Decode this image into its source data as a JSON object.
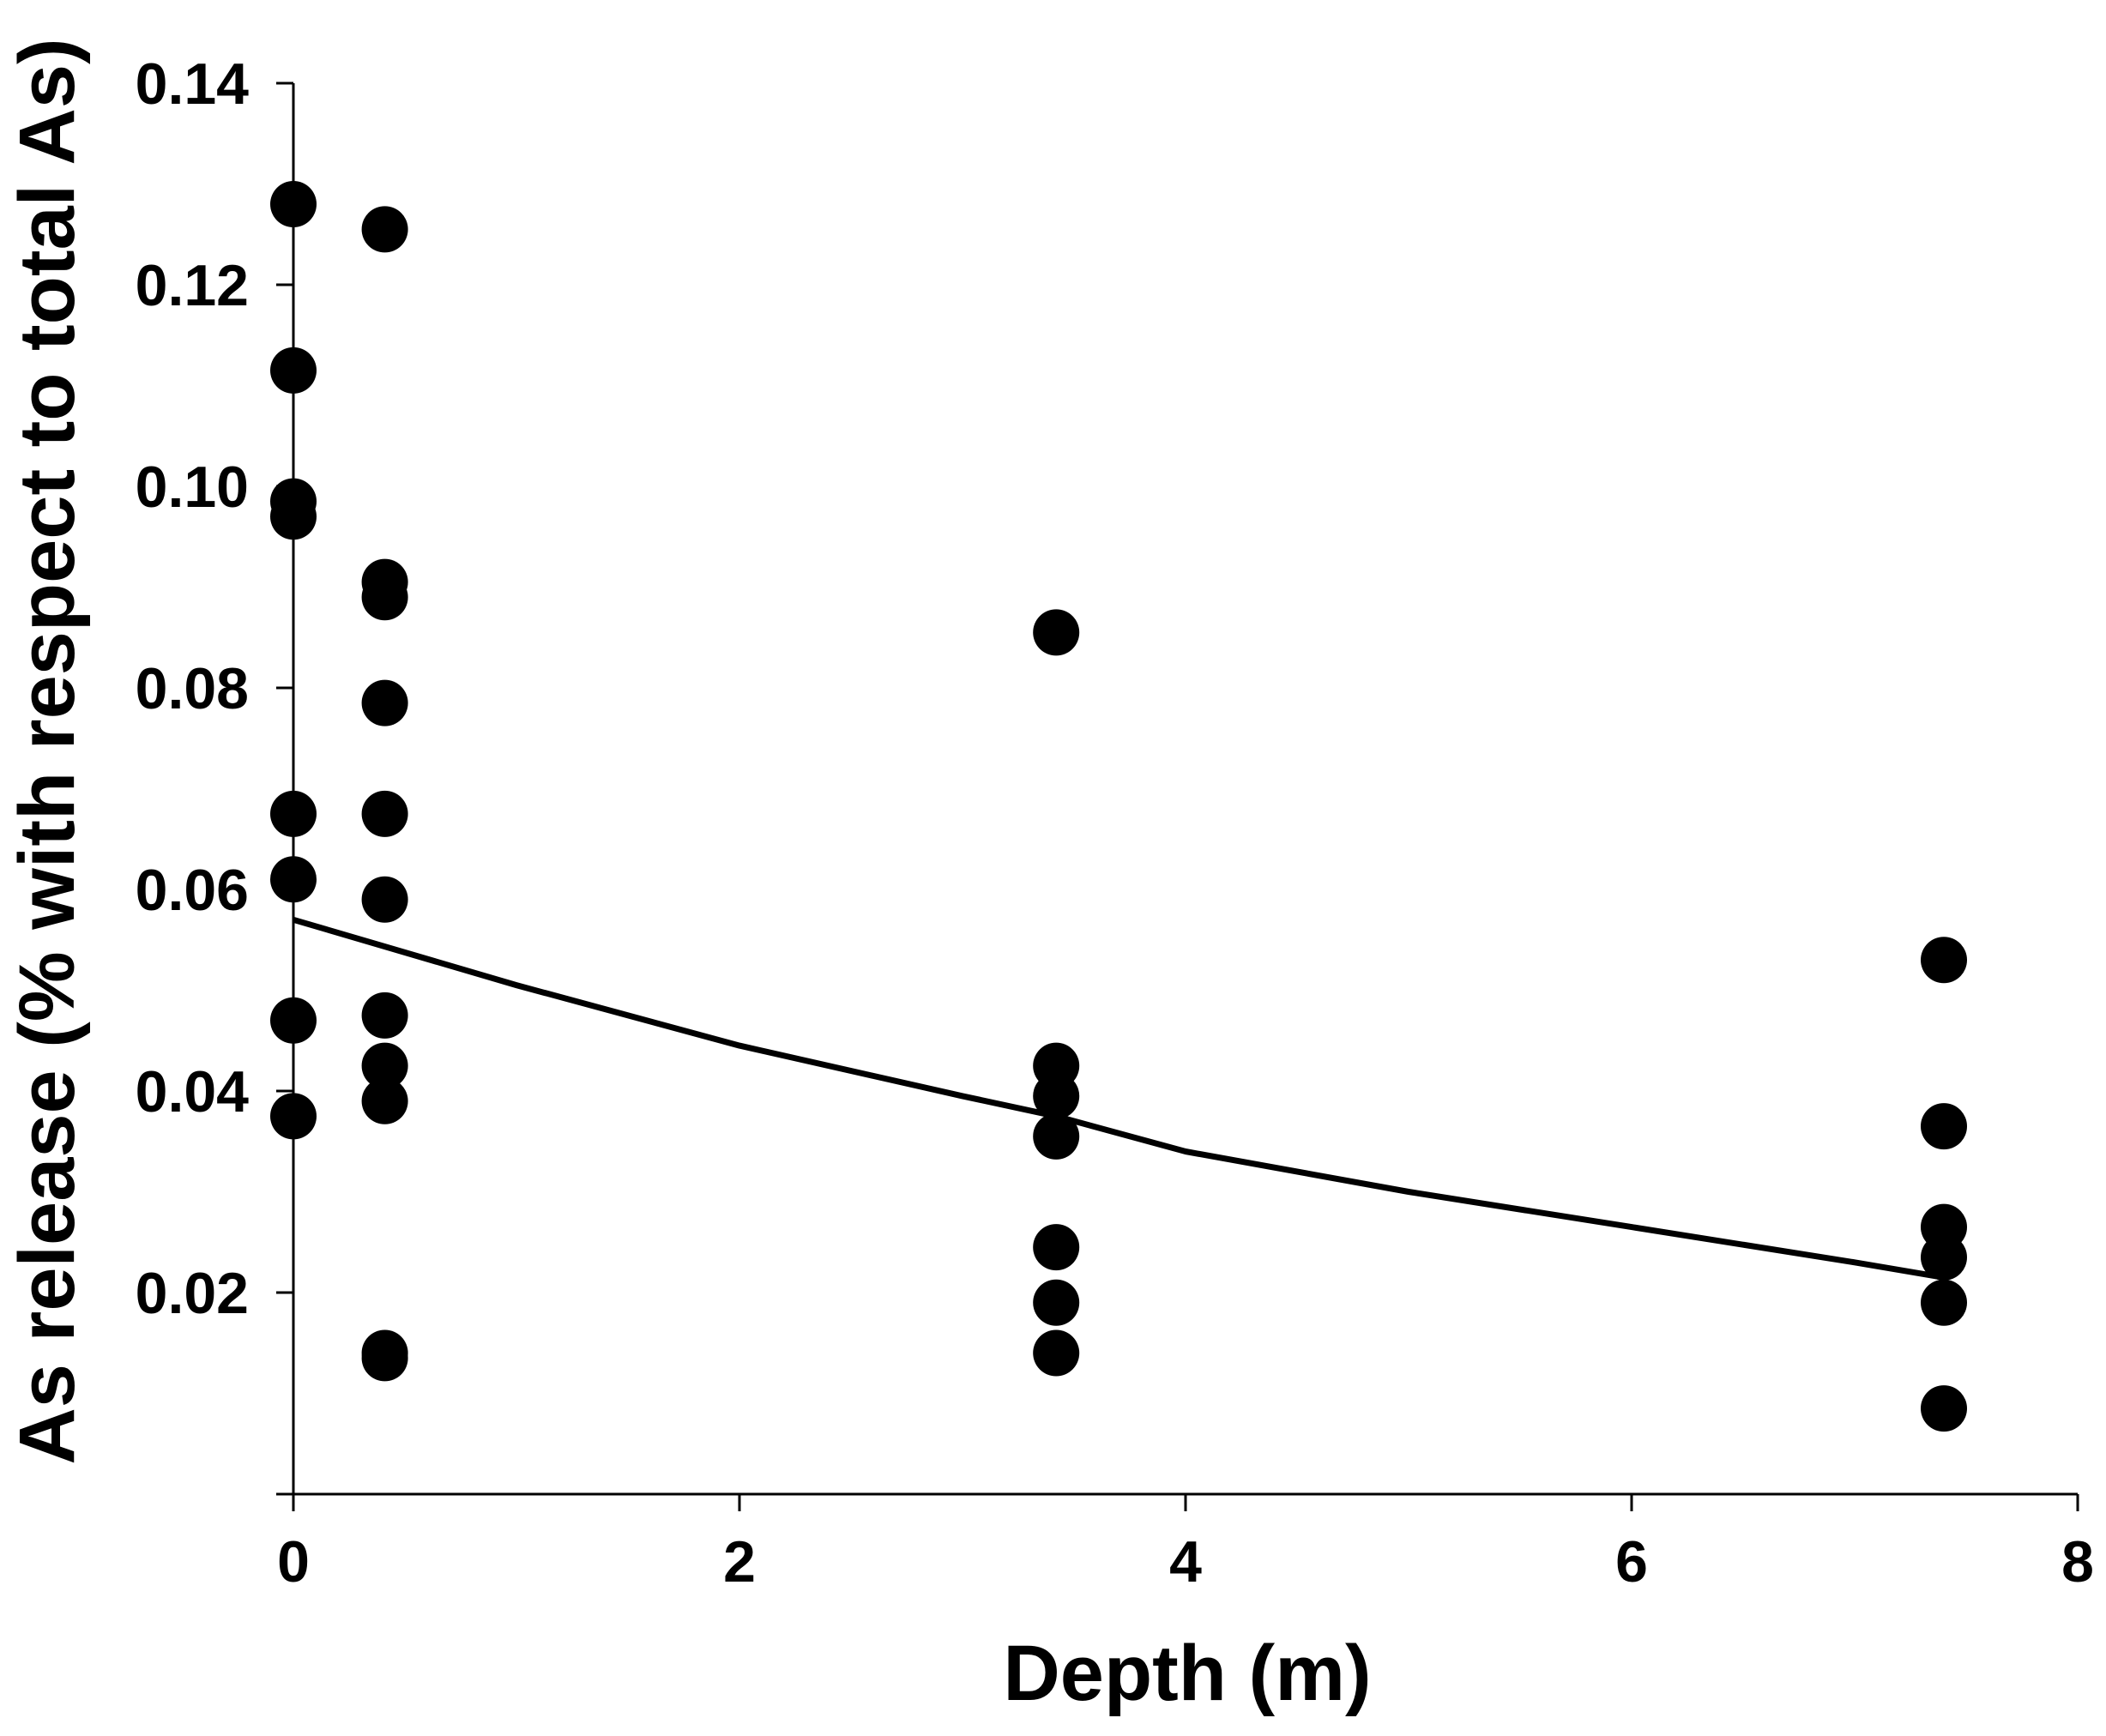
{
  "chart_data": {
    "type": "scatter",
    "xlabel": "Depth (m)",
    "ylabel": "As release (% with respect to total As)",
    "xlim": [
      0,
      8
    ],
    "ylim": [
      0,
      0.14
    ],
    "x_ticks": [
      {
        "value": 0,
        "label": "0"
      },
      {
        "value": 2,
        "label": "2"
      },
      {
        "value": 4,
        "label": "4"
      },
      {
        "value": 6,
        "label": "6"
      },
      {
        "value": 8,
        "label": "8"
      }
    ],
    "y_ticks": [
      {
        "value": 0.02,
        "label": "0.02"
      },
      {
        "value": 0.04,
        "label": "0.04"
      },
      {
        "value": 0.06,
        "label": "0.06"
      },
      {
        "value": 0.08,
        "label": "0.08"
      },
      {
        "value": 0.1,
        "label": "0.10"
      },
      {
        "value": 0.12,
        "label": "0.12"
      },
      {
        "value": 0.14,
        "label": "0.14"
      }
    ],
    "grid": false,
    "points": [
      {
        "x": 0,
        "y": 0.128
      },
      {
        "x": 0,
        "y": 0.1115
      },
      {
        "x": 0,
        "y": 0.0985
      },
      {
        "x": 0,
        "y": 0.097
      },
      {
        "x": 0,
        "y": 0.0675
      },
      {
        "x": 0,
        "y": 0.061
      },
      {
        "x": 0,
        "y": 0.047
      },
      {
        "x": 0,
        "y": 0.0375
      },
      {
        "x": 0.41,
        "y": 0.1255
      },
      {
        "x": 0.41,
        "y": 0.0905
      },
      {
        "x": 0.41,
        "y": 0.089
      },
      {
        "x": 0.41,
        "y": 0.0785
      },
      {
        "x": 0.41,
        "y": 0.0675
      },
      {
        "x": 0.41,
        "y": 0.059
      },
      {
        "x": 0.41,
        "y": 0.0475
      },
      {
        "x": 0.41,
        "y": 0.0425
      },
      {
        "x": 0.41,
        "y": 0.039
      },
      {
        "x": 0.41,
        "y": 0.014
      },
      {
        "x": 0.41,
        "y": 0.0135
      },
      {
        "x": 3.42,
        "y": 0.0855
      },
      {
        "x": 3.42,
        "y": 0.0425
      },
      {
        "x": 3.42,
        "y": 0.0395
      },
      {
        "x": 3.42,
        "y": 0.0355
      },
      {
        "x": 3.42,
        "y": 0.0245
      },
      {
        "x": 3.42,
        "y": 0.019
      },
      {
        "x": 3.42,
        "y": 0.014
      },
      {
        "x": 7.4,
        "y": 0.053
      },
      {
        "x": 7.4,
        "y": 0.0365
      },
      {
        "x": 7.4,
        "y": 0.0265
      },
      {
        "x": 7.4,
        "y": 0.0235
      },
      {
        "x": 7.4,
        "y": 0.019
      },
      {
        "x": 7.4,
        "y": 0.0085
      }
    ],
    "trendline": {
      "type": "exponential",
      "x_range": [
        0,
        7.4
      ],
      "points": [
        {
          "x": 0,
          "y": 0.057
        },
        {
          "x": 1,
          "y": 0.0505
        },
        {
          "x": 2,
          "y": 0.0445
        },
        {
          "x": 3,
          "y": 0.0395
        },
        {
          "x": 3.42,
          "y": 0.0375
        },
        {
          "x": 4,
          "y": 0.034
        },
        {
          "x": 5,
          "y": 0.03
        },
        {
          "x": 6,
          "y": 0.0265
        },
        {
          "x": 7,
          "y": 0.023
        },
        {
          "x": 7.4,
          "y": 0.0215
        }
      ]
    },
    "colors": {
      "marker": "#000000",
      "line": "#000000",
      "axis": "#000000",
      "background": "#ffffff"
    }
  }
}
